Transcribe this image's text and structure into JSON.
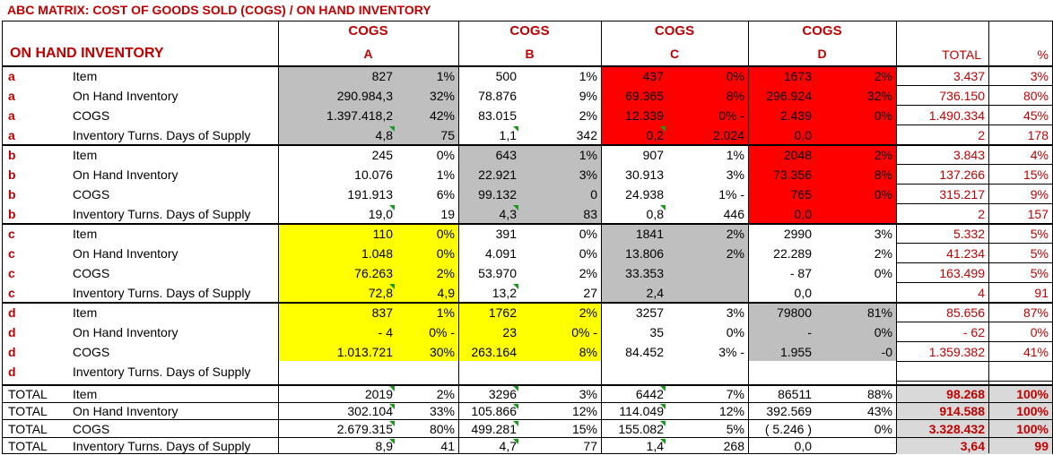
{
  "title": "ABC MATRIX:  COST OF GOODS SOLD (COGS)  / ON HAND INVENTORY",
  "corner_label": "ON HAND INVENTORY",
  "cogs_word": "COGS",
  "cogs_letters": [
    "A",
    "B",
    "C",
    "D"
  ],
  "total_header": "TOTAL",
  "pct_header": "%",
  "colors": {
    "gray": "#bfbfbf",
    "red": "#ff0000",
    "yellow": "#ffff00",
    "label_red": "#c00000"
  },
  "rows": [
    [
      "a",
      "Item",
      "827",
      "1%",
      "500",
      "1%",
      "437",
      "0%",
      "1673",
      "2%",
      "3.437",
      "3%"
    ],
    [
      "a",
      "On Hand Inventory",
      "290.984,3",
      "32%",
      "78.876",
      "9%",
      "69.365",
      "8%",
      "296.924",
      "32%",
      "736.150",
      "80%"
    ],
    [
      "a",
      "COGS",
      "1.397.418,2",
      "42%",
      "83.015",
      "2%",
      "12.339",
      "0% -",
      "2.439",
      "0%",
      "1.490.334",
      "45%"
    ],
    [
      "a",
      "Inventory Turns. Days of Supply",
      "4,8",
      "75",
      "1,1",
      "342",
      "0,2",
      "2.024",
      "0,0",
      "",
      "2",
      "178"
    ],
    [
      "b",
      "Item",
      "245",
      "0%",
      "643",
      "1%",
      "907",
      "1%",
      "2048",
      "2%",
      "3.843",
      "4%"
    ],
    [
      "b",
      "On Hand Inventory",
      "10.076",
      "1%",
      "22.921",
      "3%",
      "30.913",
      "3%",
      "73.356",
      "8%",
      "137.266",
      "15%"
    ],
    [
      "b",
      "COGS",
      "191.913",
      "6%",
      "99.132",
      "0",
      "24.938",
      "1% -",
      "765",
      "0%",
      "315.217",
      "9%"
    ],
    [
      "b",
      "Inventory Turns. Days of Supply",
      "19,0",
      "19",
      "4,3",
      "83",
      "0,8",
      "446",
      "0,0",
      "",
      "2",
      "157"
    ],
    [
      "c",
      "Item",
      "110",
      "0%",
      "391",
      "0%",
      "1841",
      "2%",
      "2990",
      "3%",
      "5.332",
      "5%"
    ],
    [
      "c",
      "On Hand Inventory",
      "1.048",
      "0%",
      "4.091",
      "0%",
      "13.806",
      "2%",
      "22.289",
      "2%",
      "41.234",
      "5%"
    ],
    [
      "c",
      "COGS",
      "76.263",
      "2%",
      "53.970",
      "2%",
      "33.353",
      "",
      "- 87",
      "0%",
      "163.499",
      "5%"
    ],
    [
      "c",
      "Inventory Turns. Days of Supply",
      "72,8",
      "4,9",
      "13,2",
      "27",
      "2,4",
      "",
      "0,0",
      "",
      "4",
      "91"
    ],
    [
      "d",
      "Item",
      "837",
      "1%",
      "1762",
      "2%",
      "3257",
      "3%",
      "79800",
      "81%",
      "85.656",
      "87%"
    ],
    [
      "d",
      "On Hand Inventory",
      "- 4",
      "0% -",
      "23",
      "0% -",
      "35",
      "0%",
      "-",
      "0%",
      "- 62",
      "0%"
    ],
    [
      "d",
      "COGS",
      "1.013.721",
      "30%",
      "263.164",
      "8%",
      "84.452",
      "3% -",
      "1.955",
      "-0",
      "1.359.382",
      "41%"
    ],
    [
      "d",
      "Inventory Turns. Days of Supply",
      "",
      "",
      "",
      "",
      "",
      "",
      "",
      "",
      "",
      ""
    ],
    [
      "TOTAL",
      "Item",
      "2019",
      "2%",
      "3296",
      "3%",
      "6442",
      "7%",
      "86511",
      "88%",
      "98.268",
      "100%"
    ],
    [
      "TOTAL",
      "On Hand Inventory",
      "302.104",
      "33%",
      "105.866",
      "12%",
      "114.049",
      "12%",
      "392.569",
      "43%",
      "914.588",
      "100%"
    ],
    [
      "TOTAL",
      "COGS",
      "2.679.315",
      "80%",
      "499.281",
      "15%",
      "155.082",
      "5%",
      "( 5.246 )",
      "0%",
      "3.328.432",
      "100%"
    ],
    [
      "TOTAL",
      "Inventory Turns. Days of Supply",
      "8,9",
      "41",
      "4,7",
      "77",
      "1,4",
      "268",
      "0,0",
      "",
      "3,64",
      "99"
    ]
  ]
}
